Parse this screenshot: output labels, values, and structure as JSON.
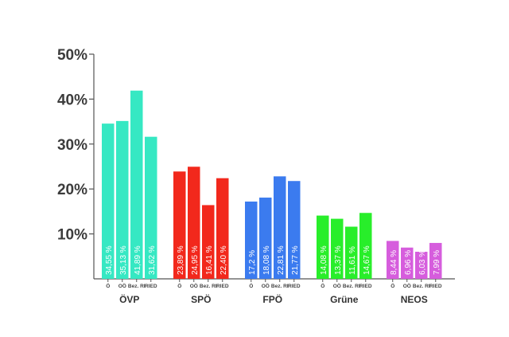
{
  "chart_data": {
    "type": "bar",
    "title": "",
    "xlabel": "",
    "ylabel": "",
    "ylim": [
      0,
      50
    ],
    "yticks": [
      {
        "value": 10,
        "label": "10%"
      },
      {
        "value": 20,
        "label": "20%"
      },
      {
        "value": 30,
        "label": "30%"
      },
      {
        "value": 40,
        "label": "40%"
      },
      {
        "value": 50,
        "label": "50%"
      }
    ],
    "grid": false,
    "legend": "none",
    "sublabels": [
      "Ö",
      "OÖ",
      "Bez. RI",
      "RIED"
    ],
    "groups": [
      {
        "name": "ÖVP",
        "color": "#36E8C3",
        "values": [
          34.55,
          35.13,
          41.89,
          31.62
        ],
        "labels": [
          "34,55 %",
          "35,13 %",
          "41,89 %",
          "31,62 %"
        ]
      },
      {
        "name": "SPÖ",
        "color": "#F2281C",
        "values": [
          23.89,
          24.95,
          16.41,
          22.4
        ],
        "labels": [
          "23,89 %",
          "24,95 %",
          "16,41 %",
          "22,40 %"
        ]
      },
      {
        "name": "FPÖ",
        "color": "#3B7BEF",
        "values": [
          17.2,
          18.08,
          22.81,
          21.77
        ],
        "labels": [
          "17,2 %",
          "18,08 %",
          "22,81 %",
          "21,77 %"
        ]
      },
      {
        "name": "Grüne",
        "color": "#28EE2A",
        "values": [
          14.08,
          13.37,
          11.61,
          14.67
        ],
        "labels": [
          "14,08 %",
          "13,37 %",
          "11,61 %",
          "14,67 %"
        ]
      },
      {
        "name": "NEOS",
        "color": "#D65DDD",
        "values": [
          8.44,
          6.96,
          6.03,
          7.99
        ],
        "labels": [
          "8,44 %",
          "6,96 %",
          "6,03 %",
          "7,99 %"
        ]
      }
    ]
  }
}
